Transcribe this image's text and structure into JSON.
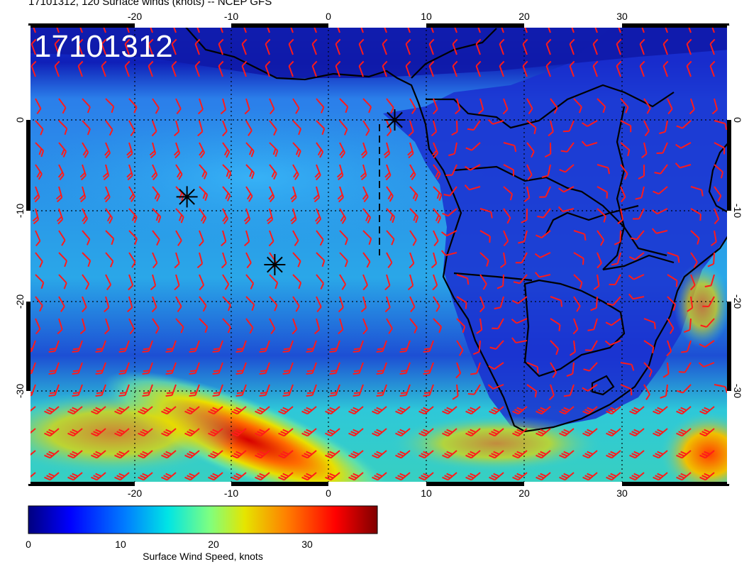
{
  "title": "17101312, 120 Surface winds (knots) -- NCEP GFS",
  "map_stamp": "17101312",
  "region": "South Atlantic / southern Africa",
  "longitude_ticks": [
    "-20",
    "-10",
    "0",
    "10",
    "20",
    "30"
  ],
  "latitude_ticks": [
    "0",
    "-10",
    "-20",
    "-30"
  ],
  "colorbar": {
    "label": "Surface Wind Speed, knots",
    "ticks": [
      "0",
      "10",
      "20",
      "30"
    ],
    "min": 0,
    "max": 38,
    "colors": [
      "#00007f",
      "#0000ff",
      "#007fff",
      "#00e5e5",
      "#7fff7f",
      "#e5e500",
      "#ff7f00",
      "#ff0000",
      "#7f0000"
    ]
  },
  "markers": [
    {
      "name": "storm-marker-1",
      "lon": -14.5,
      "lat": -8.5
    },
    {
      "name": "storm-marker-2",
      "lon": -5.5,
      "lat": -16.0
    },
    {
      "name": "storm-marker-3",
      "lon": 6.8,
      "lat": 0.0
    }
  ],
  "colors": {
    "barb": "#ff1a1a",
    "coast": "#000000",
    "grid": "#000000"
  }
}
